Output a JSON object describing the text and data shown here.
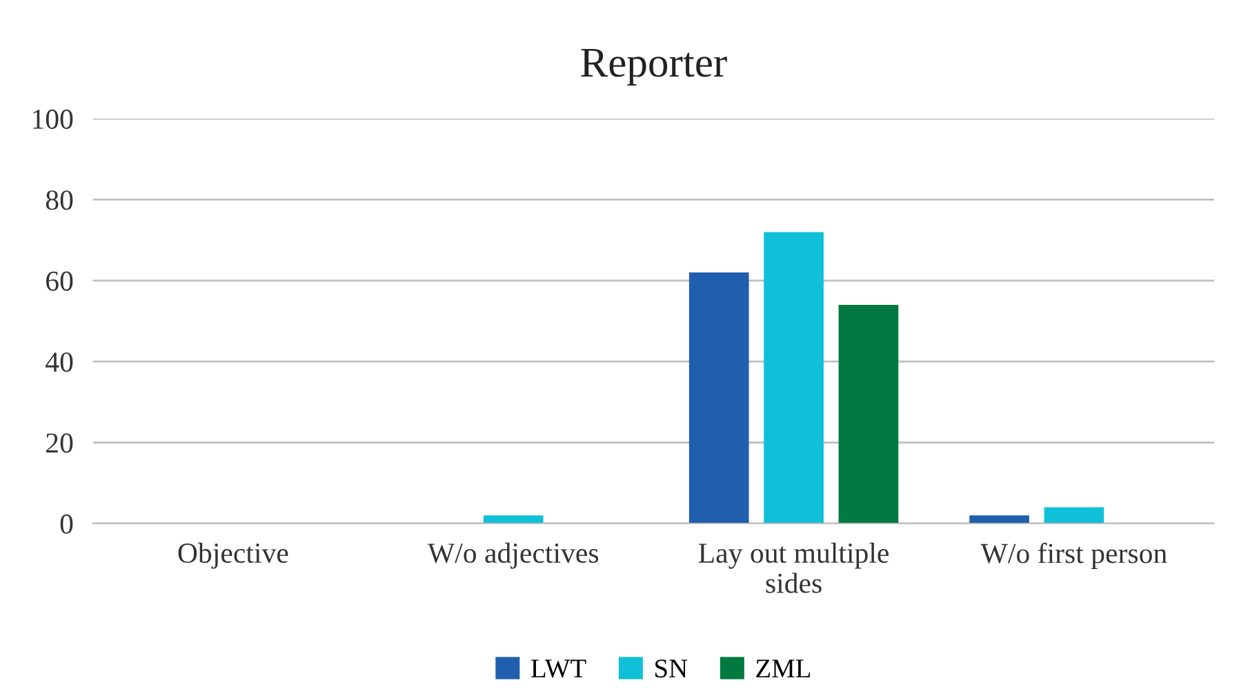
{
  "chart_data": {
    "type": "bar",
    "title": "Reporter",
    "categories": [
      "Objective",
      "W/o adjectives",
      "Lay out multiple sides",
      "W/o first person"
    ],
    "series": [
      {
        "name": "LWT",
        "color": "#1f5fad",
        "values": [
          0,
          0,
          62,
          2
        ]
      },
      {
        "name": "SN",
        "color": "#10c0d8",
        "values": [
          0,
          2,
          72,
          4
        ]
      },
      {
        "name": "ZML",
        "color": "#007a40",
        "values": [
          0,
          0,
          54,
          0
        ]
      }
    ],
    "ylim": [
      0,
      100
    ],
    "yticks": [
      0,
      20,
      40,
      60,
      80,
      100
    ],
    "grid": "y",
    "legend": "bottom"
  }
}
